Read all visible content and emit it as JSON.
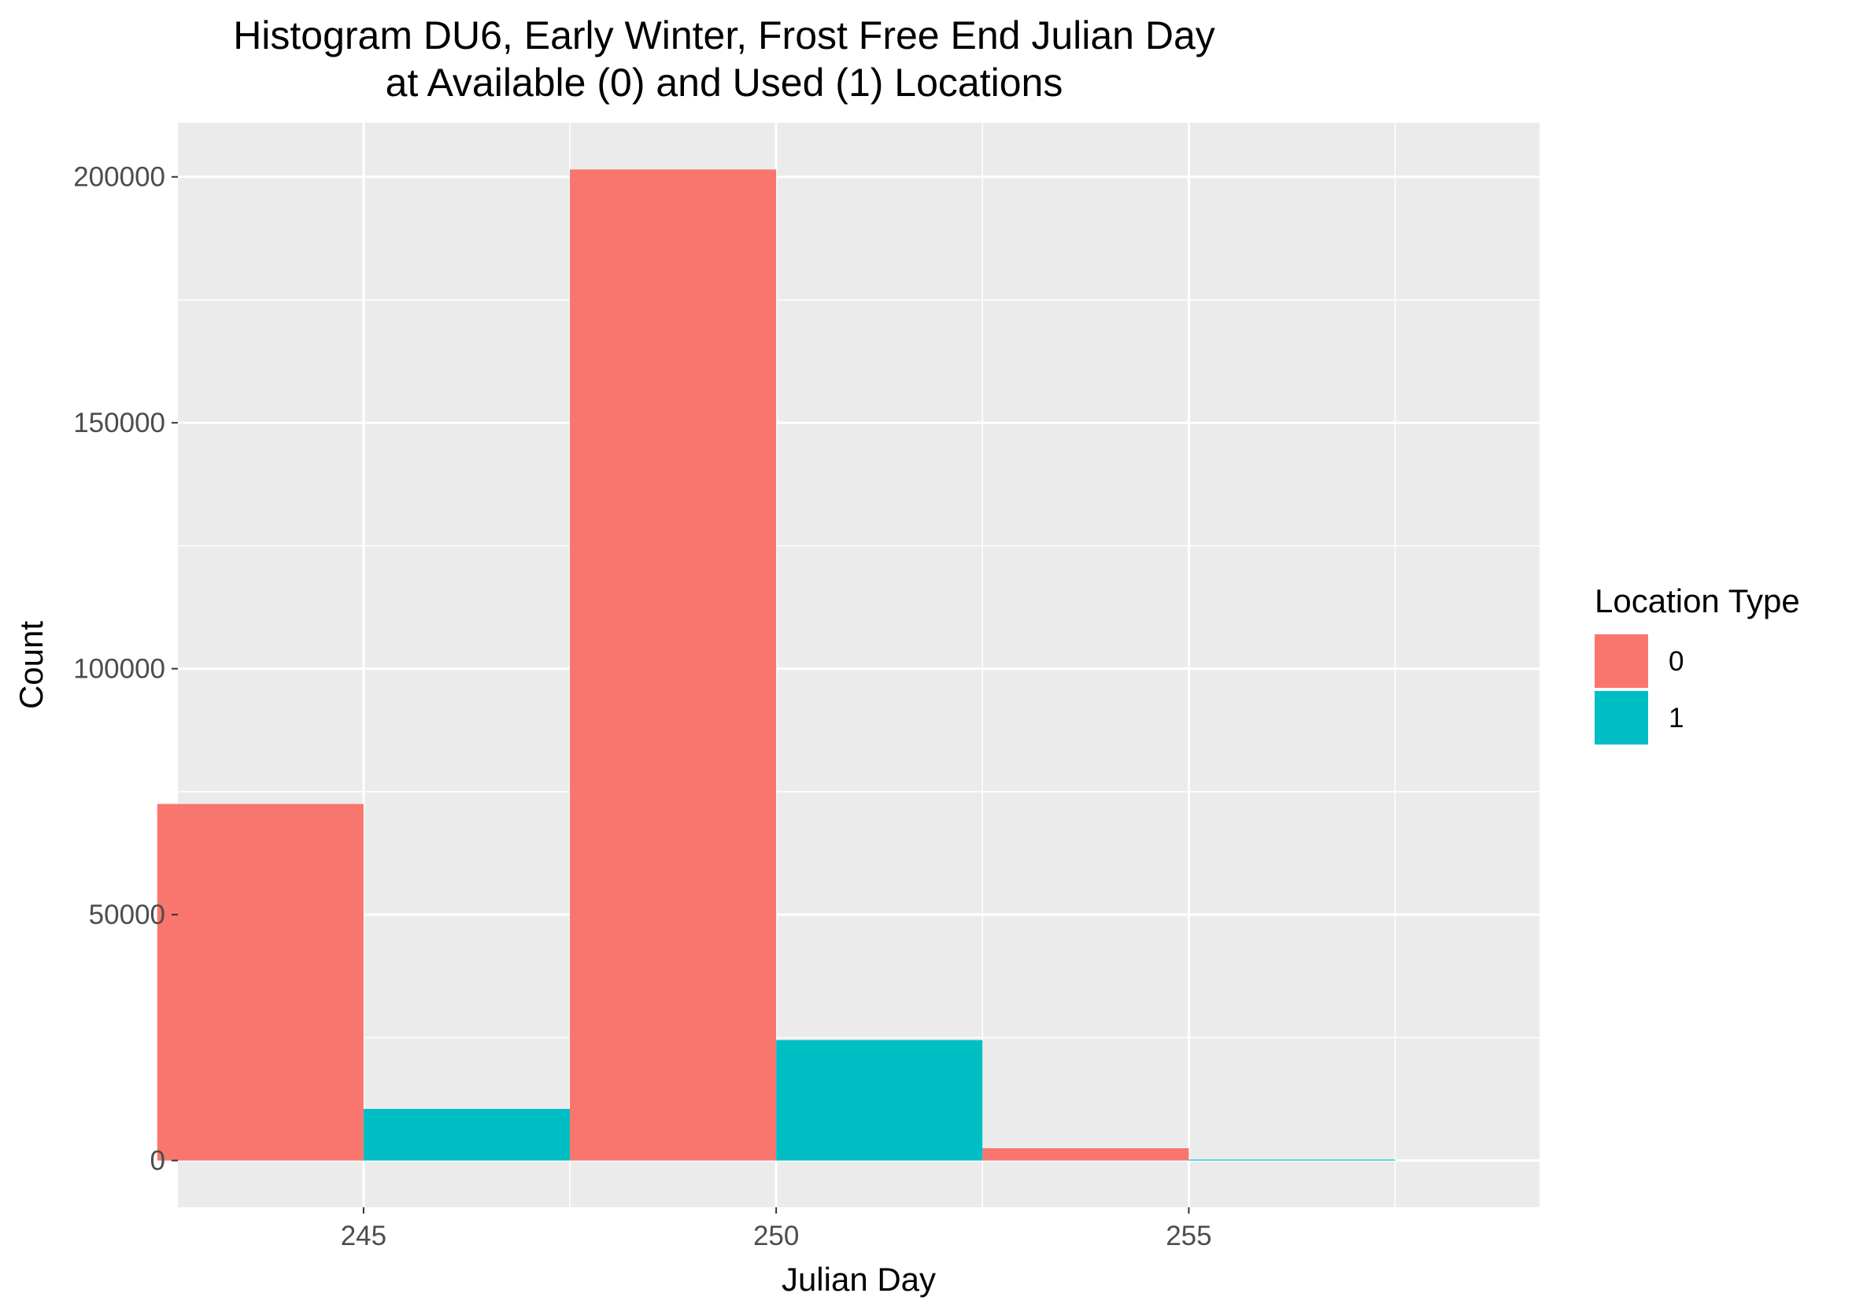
{
  "chart_data": {
    "type": "bar",
    "title": "Histogram DU6, Early Winter, Frost Free End Julian Day",
    "subtitle": "at Available (0) and Used (1) Locations",
    "xlabel": "Julian Day",
    "ylabel": "Count",
    "xlim": [
      242.75,
      259.25
    ],
    "ylim": [
      -9500,
      211000
    ],
    "x_ticks": [
      245,
      250,
      255
    ],
    "y_ticks": [
      0,
      50000,
      100000,
      150000,
      200000
    ],
    "x_minor_ticks": [
      242.5,
      247.5,
      252.5,
      257.5
    ],
    "y_minor_ticks": [
      25000,
      75000,
      125000,
      175000
    ],
    "grid": true,
    "legend": {
      "title": "Location Type",
      "position": "right"
    },
    "series": [
      {
        "name": "0",
        "color": "#F8766D",
        "bars": [
          {
            "x0": 242.5,
            "x1": 245,
            "value": 72500
          },
          {
            "x0": 247.5,
            "x1": 250,
            "value": 201500
          },
          {
            "x0": 252.5,
            "x1": 255,
            "value": 2500
          }
        ]
      },
      {
        "name": "1",
        "color": "#00BFC4",
        "bars": [
          {
            "x0": 245,
            "x1": 247.5,
            "value": 10500
          },
          {
            "x0": 250,
            "x1": 252.5,
            "value": 24500
          },
          {
            "x0": 255,
            "x1": 257.5,
            "value": 200
          }
        ]
      }
    ]
  },
  "colors": {
    "panel_background": "#EBEBEB",
    "grid_line": "#FFFFFF"
  }
}
